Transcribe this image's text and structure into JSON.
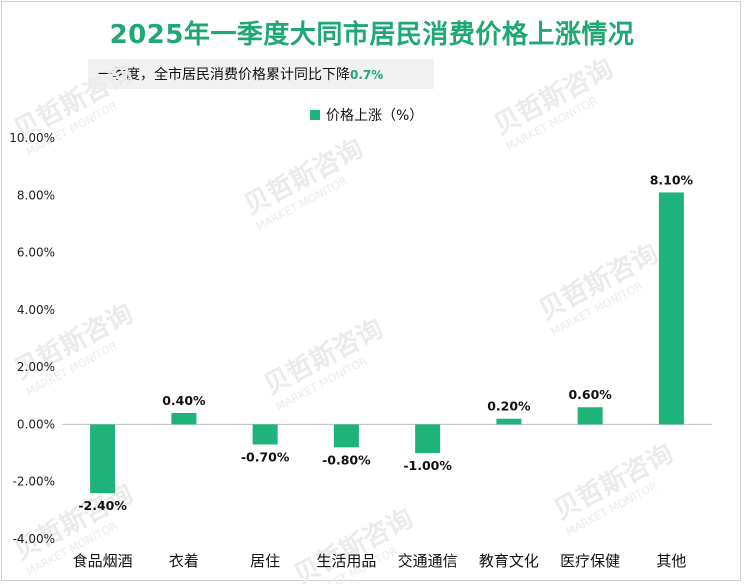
{
  "title": "2025年一季度大同市居民消费价格上涨情况",
  "subtitle": {
    "text": "一季度，全市居民消费价格累计同比下降",
    "highlight": "0.7%"
  },
  "watermark": {
    "cn": "贝哲斯咨询",
    "en": "MARKET MONITOR"
  },
  "chart_data": {
    "type": "bar",
    "title": "2025年一季度大同市居民消费价格上涨情况",
    "categories": [
      "食品烟酒",
      "衣着",
      "居住",
      "生活用品",
      "交通通信",
      "教育文化",
      "医疗保健",
      "其他"
    ],
    "series": [
      {
        "name": "价格上涨（%）",
        "values": [
          -2.4,
          0.4,
          -0.7,
          -0.8,
          -1.0,
          0.2,
          0.6,
          8.1
        ],
        "labels": [
          "-2.40%",
          "0.40%",
          "-0.70%",
          "-0.80%",
          "-1.00%",
          "0.20%",
          "0.60%",
          "8.10%"
        ]
      }
    ],
    "ylim": [
      -4,
      10
    ],
    "yticks": [
      10,
      8,
      6,
      4,
      2,
      0,
      -2,
      -4
    ],
    "ytick_labels": [
      "10.00%",
      "8.00%",
      "6.00%",
      "4.00%",
      "2.00%",
      "0.00%",
      "-2.00%",
      "-4.00%"
    ],
    "legend": "top-center",
    "grid": false,
    "color": "#1fb37c"
  }
}
